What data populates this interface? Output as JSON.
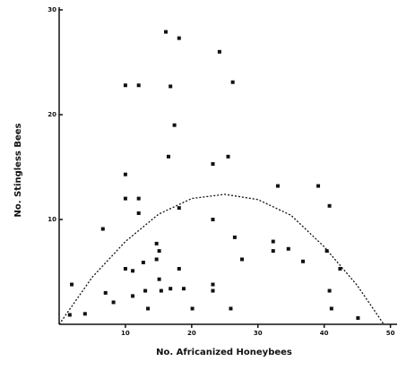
{
  "chart_data": {
    "type": "scatter",
    "x_label": "No. Africanized Honeybees",
    "y_label": "No. Stingless Bees",
    "xlim": [
      0,
      51
    ],
    "ylim": [
      0,
      30
    ],
    "xticks": [
      10,
      20,
      30,
      40,
      50
    ],
    "yticks": [
      10,
      20,
      30
    ],
    "color": "#111111",
    "x": [
      1.9,
      1.6,
      3.9,
      7.0,
      6.6,
      8.2,
      10,
      12.0,
      10,
      10,
      10,
      11.1,
      11.1,
      12.0,
      12.0,
      12.7,
      13,
      13.4,
      14.7,
      14.7,
      15.1,
      15.4,
      15.1,
      16.1,
      16.8,
      17.4,
      18.1,
      16.5,
      16.8,
      18.1,
      18.1,
      18.8,
      20.1,
      23.2,
      23.2,
      23.2,
      23.2,
      24.2,
      25.5,
      25.9,
      26.2,
      26.5,
      27.6,
      33,
      32.3,
      32.3,
      34.6,
      36.8,
      39.1,
      40.8,
      40.4,
      41.1,
      40.8,
      42.4,
      45.1
    ],
    "values": [
      3.8,
      0.9,
      1.0,
      3.0,
      9.1,
      2.1,
      22.8,
      22.8,
      14.3,
      12.0,
      5.3,
      5.1,
      2.7,
      12.0,
      10.6,
      5.9,
      3.2,
      1.5,
      6.2,
      7.7,
      4.3,
      3.2,
      7.0,
      27.9,
      22.7,
      19.0,
      27.3,
      16.0,
      3.4,
      11.1,
      5.3,
      3.4,
      1.5,
      15.3,
      10,
      3.8,
      3.2,
      26.0,
      16.0,
      1.5,
      23.1,
      8.3,
      6.2,
      13.2,
      7.9,
      7.0,
      7.2,
      6.0,
      13.2,
      11.3,
      7.0,
      1.5,
      3.2,
      5.3,
      0.6
    ],
    "fit": {
      "x": [
        0,
        5,
        10,
        15,
        20,
        25,
        30,
        35,
        40,
        45,
        49
      ],
      "values": [
        0,
        4.5,
        7.9,
        10.5,
        12.0,
        12.4,
        11.9,
        10.4,
        7.4,
        3.7,
        0
      ],
      "dashed": true
    }
  }
}
